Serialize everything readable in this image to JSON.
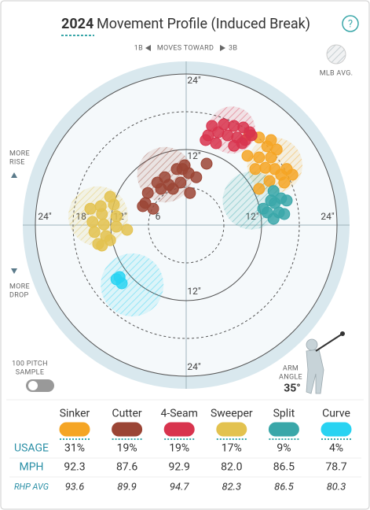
{
  "ui": {
    "year": "2024",
    "title": "Movement Profile (Induced Break)",
    "help": "?",
    "left_side": "1B",
    "moves_toward": "MOVES TOWARD",
    "right_side": "3B",
    "mlb_avg": "MLB AVG.",
    "more_rise": [
      "MORE",
      "RISE"
    ],
    "more_drop": [
      "MORE",
      "DROP"
    ],
    "sample": [
      "100 PITCH",
      "SAMPLE"
    ],
    "arm_angle": [
      "ARM",
      "ANGLE"
    ],
    "arm_angle_value": "35°"
  },
  "chart_data": {
    "type": "scatter",
    "xlim": [
      -26,
      26
    ],
    "ylim": [
      -26,
      26
    ],
    "rings": [
      {
        "value": 6,
        "label": "6"
      },
      {
        "value": 12,
        "label": "12\""
      },
      {
        "value": 18,
        "label": "18\""
      },
      {
        "value": 24,
        "label": "24\""
      }
    ],
    "series": [
      {
        "name": "Sinker",
        "color": "#f5a524",
        "x": [
          10,
          11.6,
          12.9,
          14.4,
          13.5,
          11.6,
          9.75,
          12.6,
          14.1,
          16,
          16.9,
          15.1,
          13.25,
          11.6,
          15.6,
          11,
          13.5
        ],
        "y": [
          14.25,
          13.9,
          12.5,
          12,
          10.75,
          10.75,
          11,
          9.1,
          8.9,
          8.9,
          8,
          8,
          7,
          5.75,
          6.75,
          8.9,
          13.5
        ],
        "mlb_avg": {
          "x": 14.1,
          "y": 9.5,
          "r": 4.4
        }
      },
      {
        "name": "Cutter",
        "color": "#9b4535",
        "x": [
          3.25,
          -0.25,
          -1.5,
          0.4,
          -3.4,
          -4.6,
          -2.75,
          -0.9,
          0.6,
          -6.1,
          -4,
          -2.1,
          -6.5,
          -5.25,
          -6.9,
          -0.6,
          1.6
        ],
        "y": [
          9.75,
          9.5,
          8.9,
          8.25,
          7.6,
          6.75,
          6.4,
          6.75,
          5.1,
          5.1,
          5.75,
          5.75,
          3.5,
          2.6,
          3,
          8.9,
          7.6
        ],
        "mlb_avg": {
          "x": -3.4,
          "y": 8,
          "r": 4.4
        }
      },
      {
        "name": "4-Seam",
        "color": "#d8344e",
        "x": [
          4.1,
          6,
          7.6,
          9.1,
          10.1,
          5.1,
          6.6,
          8.1,
          9.4,
          3.5,
          4.75,
          7.6,
          8.9,
          3.1,
          10.4
        ],
        "y": [
          15.75,
          16,
          15.75,
          15.5,
          14.75,
          14.75,
          14.25,
          13.9,
          13.5,
          14.25,
          13,
          12.6,
          13,
          13.5,
          14.25
        ],
        "mlb_avg": {
          "x": 7.25,
          "y": 15.1,
          "r": 3.75
        }
      },
      {
        "name": "Sweeper",
        "color": "#e3c24f",
        "x": [
          -12.1,
          -13.6,
          -15.25,
          -13.4,
          -11.1,
          -14.9,
          -13.1,
          -11.1,
          -9.4,
          -14.6,
          -12.75,
          -14,
          -12.1,
          -13.4,
          -11.5
        ],
        "y": [
          4.5,
          3,
          2.6,
          1.75,
          1.4,
          0.5,
          0.1,
          -0.25,
          -0.75,
          -1.1,
          -1.75,
          -3,
          -2.4,
          -3.25,
          3.25
        ],
        "mlb_avg": {
          "x": -14,
          "y": 1.4,
          "r": 4.75
        }
      },
      {
        "name": "Split",
        "color": "#3aa7a9",
        "x": [
          13.9,
          15.1,
          16,
          14.1,
          12.9,
          14.75,
          13.9,
          15.6,
          12.25,
          13.5
        ],
        "y": [
          5.4,
          4.25,
          3.9,
          3.5,
          2,
          2,
          1,
          1.75,
          2.6,
          3.9
        ],
        "mlb_avg": {
          "x": 10.4,
          "y": 3.9,
          "r": 4.6
        }
      },
      {
        "name": "Curve",
        "color": "#29d3f2",
        "x": [
          -11.1,
          -10.25,
          -10.6
        ],
        "y": [
          -8.6,
          -9.25,
          -8.25
        ],
        "mlb_avg": {
          "x": -8.6,
          "y": -9.5,
          "r": 5
        }
      }
    ]
  },
  "table": {
    "rows": [
      {
        "label": "USAGE",
        "values": [
          "31%",
          "19%",
          "19%",
          "17%",
          "9%",
          "4%"
        ]
      },
      {
        "label": "MPH",
        "values": [
          "92.3",
          "87.6",
          "92.9",
          "82.0",
          "86.5",
          "78.7"
        ]
      },
      {
        "label": "RHP AVG",
        "values": [
          "93.6",
          "89.9",
          "94.7",
          "82.3",
          "86.5",
          "80.3"
        ]
      }
    ]
  }
}
